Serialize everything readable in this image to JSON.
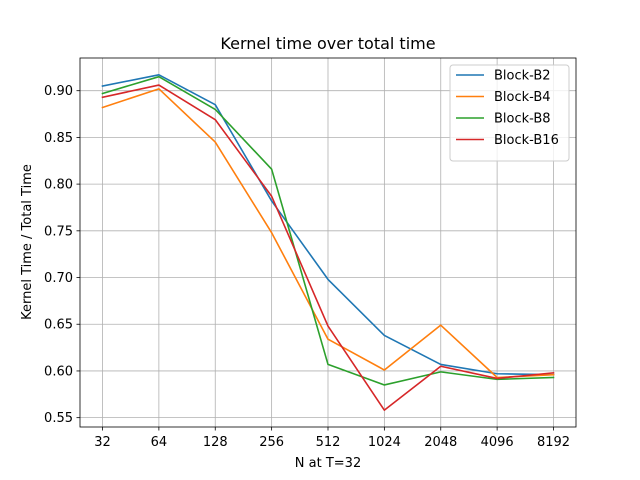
{
  "chart_data": {
    "type": "line",
    "title": "Kernel time over total time",
    "xlabel": "N at T=32",
    "ylabel": "Kernel Time / Total Time",
    "categories": [
      "32",
      "64",
      "128",
      "256",
      "512",
      "1024",
      "2048",
      "4096",
      "8192"
    ],
    "ylim": [
      0.54,
      0.935
    ],
    "yticks": [
      "0.55",
      "0.60",
      "0.65",
      "0.70",
      "0.75",
      "0.80",
      "0.85",
      "0.90"
    ],
    "grid": true,
    "legend_position": "top-right",
    "series": [
      {
        "name": "Block-B2",
        "color": "#1f77b4",
        "values": [
          0.905,
          0.917,
          0.885,
          0.782,
          0.698,
          0.638,
          0.607,
          0.597,
          0.596
        ]
      },
      {
        "name": "Block-B4",
        "color": "#ff7f0e",
        "values": [
          0.882,
          0.902,
          0.845,
          0.748,
          0.634,
          0.601,
          0.649,
          0.593,
          0.596
        ]
      },
      {
        "name": "Block-B8",
        "color": "#2ca02c",
        "values": [
          0.897,
          0.915,
          0.88,
          0.816,
          0.607,
          0.585,
          0.599,
          0.591,
          0.593
        ]
      },
      {
        "name": "Block-B16",
        "color": "#d62728",
        "values": [
          0.893,
          0.906,
          0.869,
          0.787,
          0.648,
          0.558,
          0.605,
          0.592,
          0.598
        ]
      }
    ]
  }
}
